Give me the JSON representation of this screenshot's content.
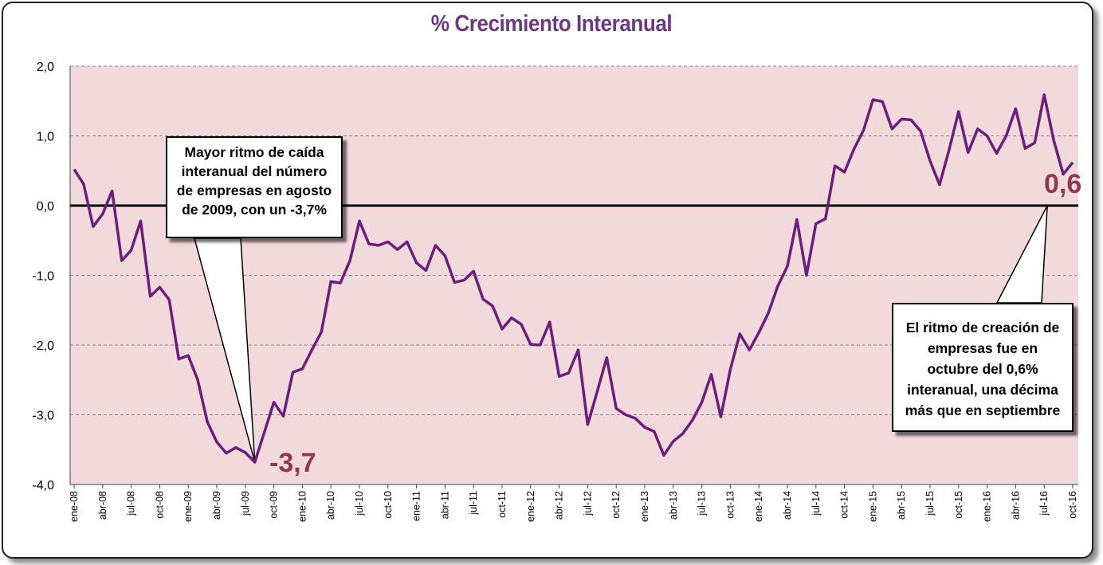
{
  "chart_data": {
    "type": "line",
    "title": "% Crecimiento Interanual",
    "ylim": [
      -4.0,
      2.0
    ],
    "yticks": [
      "2,0",
      "1,0",
      "0,0",
      "-1,0",
      "-2,0",
      "-3,0",
      "-4,0"
    ],
    "ytick_values": [
      2,
      1,
      0,
      -1,
      -2,
      -3,
      -4
    ],
    "x_tick_labels": [
      "ene-08",
      "abr-08",
      "jul-08",
      "oct-08",
      "ene-09",
      "abr-09",
      "jul-09",
      "oct-09",
      "ene-10",
      "abr-10",
      "jul-10",
      "oct-10",
      "ene-11",
      "abr-11",
      "jul-11",
      "oct-11",
      "ene-12",
      "abr-12",
      "jul-12",
      "oct-12",
      "ene-13",
      "abr-13",
      "jul-13",
      "oct-13",
      "ene-14",
      "abr-14",
      "jul-14",
      "oct-14",
      "ene-15",
      "abr-15",
      "jul-15",
      "oct-15",
      "ene-16",
      "abr-16",
      "jul-16",
      "oct-16"
    ],
    "x_start": "ene-08",
    "x_end": "oct-16",
    "series": [
      {
        "color": "#6b1f7a",
        "values": [
          0.52,
          0.31,
          -0.3,
          -0.12,
          0.21,
          -0.79,
          -0.64,
          -0.22,
          -1.3,
          -1.17,
          -1.35,
          -2.2,
          -2.15,
          -2.5,
          -3.1,
          -3.39,
          -3.55,
          -3.47,
          -3.54,
          -3.68,
          -3.25,
          -2.82,
          -3.02,
          -2.39,
          -2.34,
          -2.07,
          -1.81,
          -1.09,
          -1.11,
          -0.79,
          -0.22,
          -0.55,
          -0.57,
          -0.52,
          -0.63,
          -0.52,
          -0.82,
          -0.93,
          -0.57,
          -0.72,
          -1.1,
          -1.07,
          -0.94,
          -1.34,
          -1.44,
          -1.77,
          -1.61,
          -1.7,
          -1.99,
          -2.0,
          -1.67,
          -2.45,
          -2.4,
          -2.07,
          -3.14,
          -2.67,
          -2.18,
          -2.91,
          -3.0,
          -3.05,
          -3.18,
          -3.24,
          -3.58,
          -3.38,
          -3.27,
          -3.08,
          -2.82,
          -2.42,
          -3.03,
          -2.35,
          -1.84,
          -2.07,
          -1.82,
          -1.54,
          -1.15,
          -0.87,
          -0.2,
          -1.0,
          -0.26,
          -0.19,
          0.57,
          0.48,
          0.81,
          1.08,
          1.52,
          1.49,
          1.1,
          1.24,
          1.23,
          1.07,
          0.64,
          0.3,
          0.8,
          1.35,
          0.76,
          1.1,
          1.0,
          0.75,
          1.0,
          1.39,
          0.82,
          0.9,
          1.59,
          0.94,
          0.45,
          0.62
        ]
      }
    ],
    "zero_line": true,
    "grid": true,
    "plot_background": "#f1d9dc",
    "annotations": {
      "min_label": "-3,7",
      "last_label": "0,6",
      "callout_left": [
        "Mayor ritmo de caída",
        "interanual del número",
        "de empresas  en agosto",
        "de 2009,  con un -3,7%"
      ],
      "callout_right": [
        "El ritmo de creación de",
        "empresas fue en",
        "octubre del 0,6%",
        "interanual, una décima",
        "más que en septiembre"
      ],
      "label_color": "#8c3a52"
    }
  }
}
